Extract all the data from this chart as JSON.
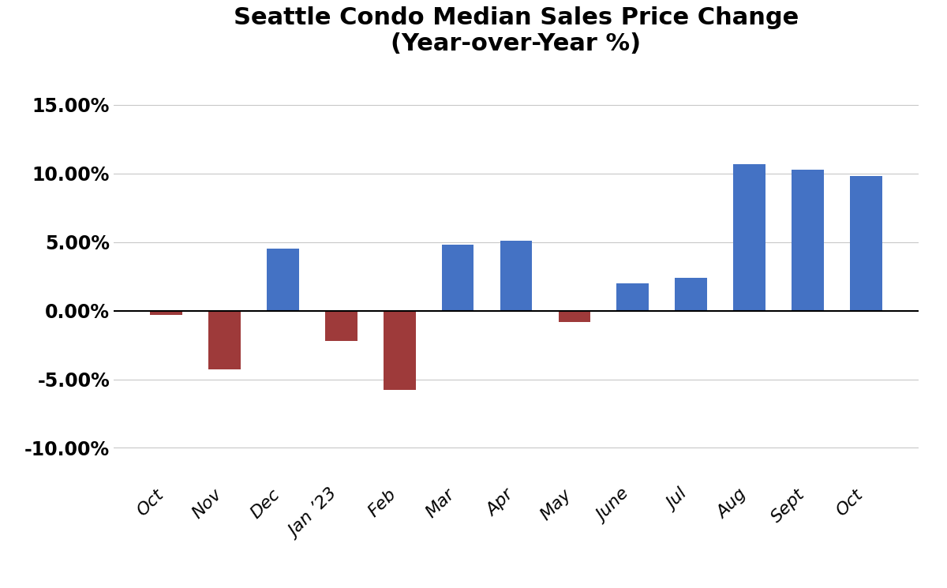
{
  "categories": [
    "Oct",
    "Nov",
    "Dec",
    "Jan ’23",
    "Feb",
    "Mar",
    "Apr",
    "May",
    "June",
    "Jul",
    "Aug",
    "Sept",
    "Oct"
  ],
  "values": [
    -0.3,
    -4.3,
    4.5,
    -2.2,
    -5.8,
    4.8,
    5.1,
    -0.8,
    2.0,
    2.4,
    10.7,
    10.3,
    9.8
  ],
  "title_line1": "Seattle Condo Median Sales Price Change",
  "title_line2": "(Year-over-Year %)",
  "positive_color": "#4472C4",
  "negative_color": "#9E3A3A",
  "ylim": [
    -12.5,
    17.5
  ],
  "yticks": [
    -10.0,
    -5.0,
    0.0,
    5.0,
    10.0,
    15.0
  ],
  "background_color": "#FFFFFF",
  "grid_color": "#C8C8C8",
  "bar_width": 0.55,
  "title_fontsize": 22,
  "ytick_fontsize": 17,
  "xtick_fontsize": 16,
  "xtick_rotation": 45
}
